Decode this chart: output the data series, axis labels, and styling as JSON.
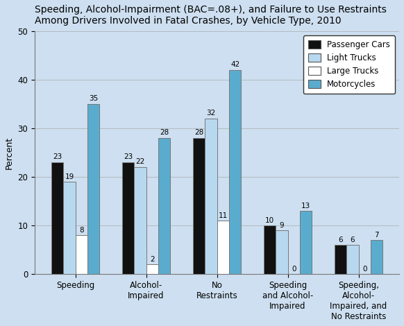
{
  "title_line1": "Speeding, Alcohol-Impairment (BAC=.08+), and Failure to Use Restraints",
  "title_line2": "Among Drivers Involved in Fatal Crashes, by Vehicle Type, 2010",
  "ylabel": "Percent",
  "categories": [
    "Speeding",
    "Alcohol-\nImpaired",
    "No\nRestraints",
    "Speeding\nand Alcohol-\nImpaired",
    "Speeding,\nAlcohol-\nImpaired, and\nNo Restraints"
  ],
  "series": {
    "Passenger Cars": [
      23,
      23,
      28,
      10,
      6
    ],
    "Light Trucks": [
      19,
      22,
      32,
      9,
      6
    ],
    "Large Trucks": [
      8,
      2,
      11,
      0,
      0
    ],
    "Motorcycles": [
      35,
      28,
      42,
      13,
      7
    ]
  },
  "colors": {
    "Passenger Cars": "#111111",
    "Light Trucks": "#b8d8f0",
    "Large Trucks": "#ffffff",
    "Motorcycles": "#5aacce"
  },
  "bar_edge_color": "#777777",
  "ylim": [
    0,
    50
  ],
  "yticks": [
    0,
    10,
    20,
    30,
    40,
    50
  ],
  "background_color": "#cddff0",
  "plot_bg_color": "#cddff0",
  "title_fontsize": 10,
  "label_fontsize": 9,
  "tick_fontsize": 8.5,
  "legend_fontsize": 8.5,
  "value_fontsize": 7.5
}
